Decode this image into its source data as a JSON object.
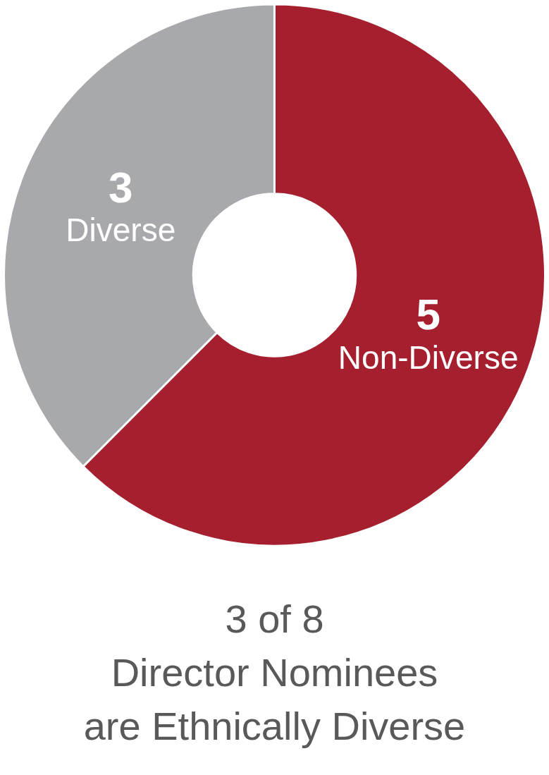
{
  "chart_data": {
    "type": "donut",
    "title": "3 of 8\nDirector Nominees\nare Ethnically Diverse",
    "categories": [
      "Non-Diverse",
      "Diverse"
    ],
    "values": [
      5,
      3
    ],
    "colors": [
      "#a51f2e",
      "#a7a9ac"
    ],
    "data_labels": true,
    "legend": false
  }
}
